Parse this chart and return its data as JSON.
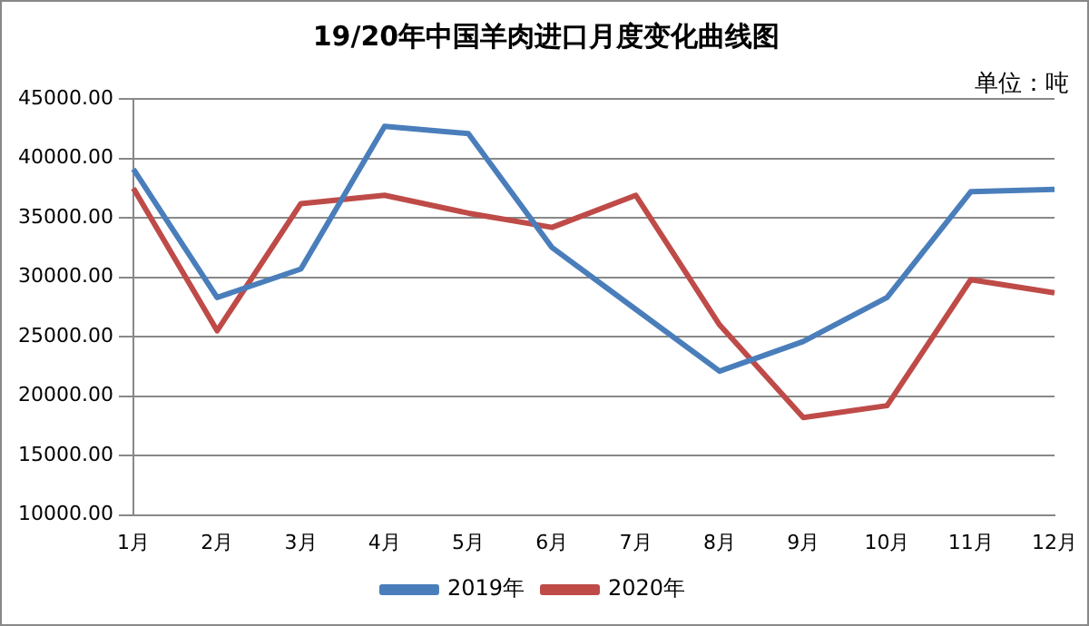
{
  "chart_data": {
    "type": "line",
    "title": "19/20年中国羊肉进口月度变化曲线图",
    "annotations": [
      "单位：吨"
    ],
    "categories": [
      "1月",
      "2月",
      "3月",
      "4月",
      "5月",
      "6月",
      "7月",
      "8月",
      "9月",
      "10月",
      "11月",
      "12月"
    ],
    "series": [
      {
        "name": "2019年",
        "color": "#4a7ebb",
        "values": [
          39100,
          28300,
          30700,
          42700,
          42100,
          32500,
          27300,
          22100,
          24600,
          28300,
          37200,
          37400
        ]
      },
      {
        "name": "2020年",
        "color": "#be4b48",
        "values": [
          37500,
          25500,
          36200,
          36900,
          35400,
          34200,
          36900,
          26000,
          18200,
          19200,
          29800,
          28700
        ]
      }
    ],
    "ylim": [
      10000,
      45000
    ],
    "yticks": [
      {
        "value": 10000,
        "label": "10000.00"
      },
      {
        "value": 15000,
        "label": "15000.00"
      },
      {
        "value": 20000,
        "label": "20000.00"
      },
      {
        "value": 25000,
        "label": "25000.00"
      },
      {
        "value": 30000,
        "label": "30000.00"
      },
      {
        "value": 35000,
        "label": "35000.00"
      },
      {
        "value": 40000,
        "label": "40000.00"
      },
      {
        "value": 45000,
        "label": "45000.00"
      }
    ],
    "grid": "y",
    "legend": "bottom",
    "marker": "none",
    "line_style": "solid"
  }
}
